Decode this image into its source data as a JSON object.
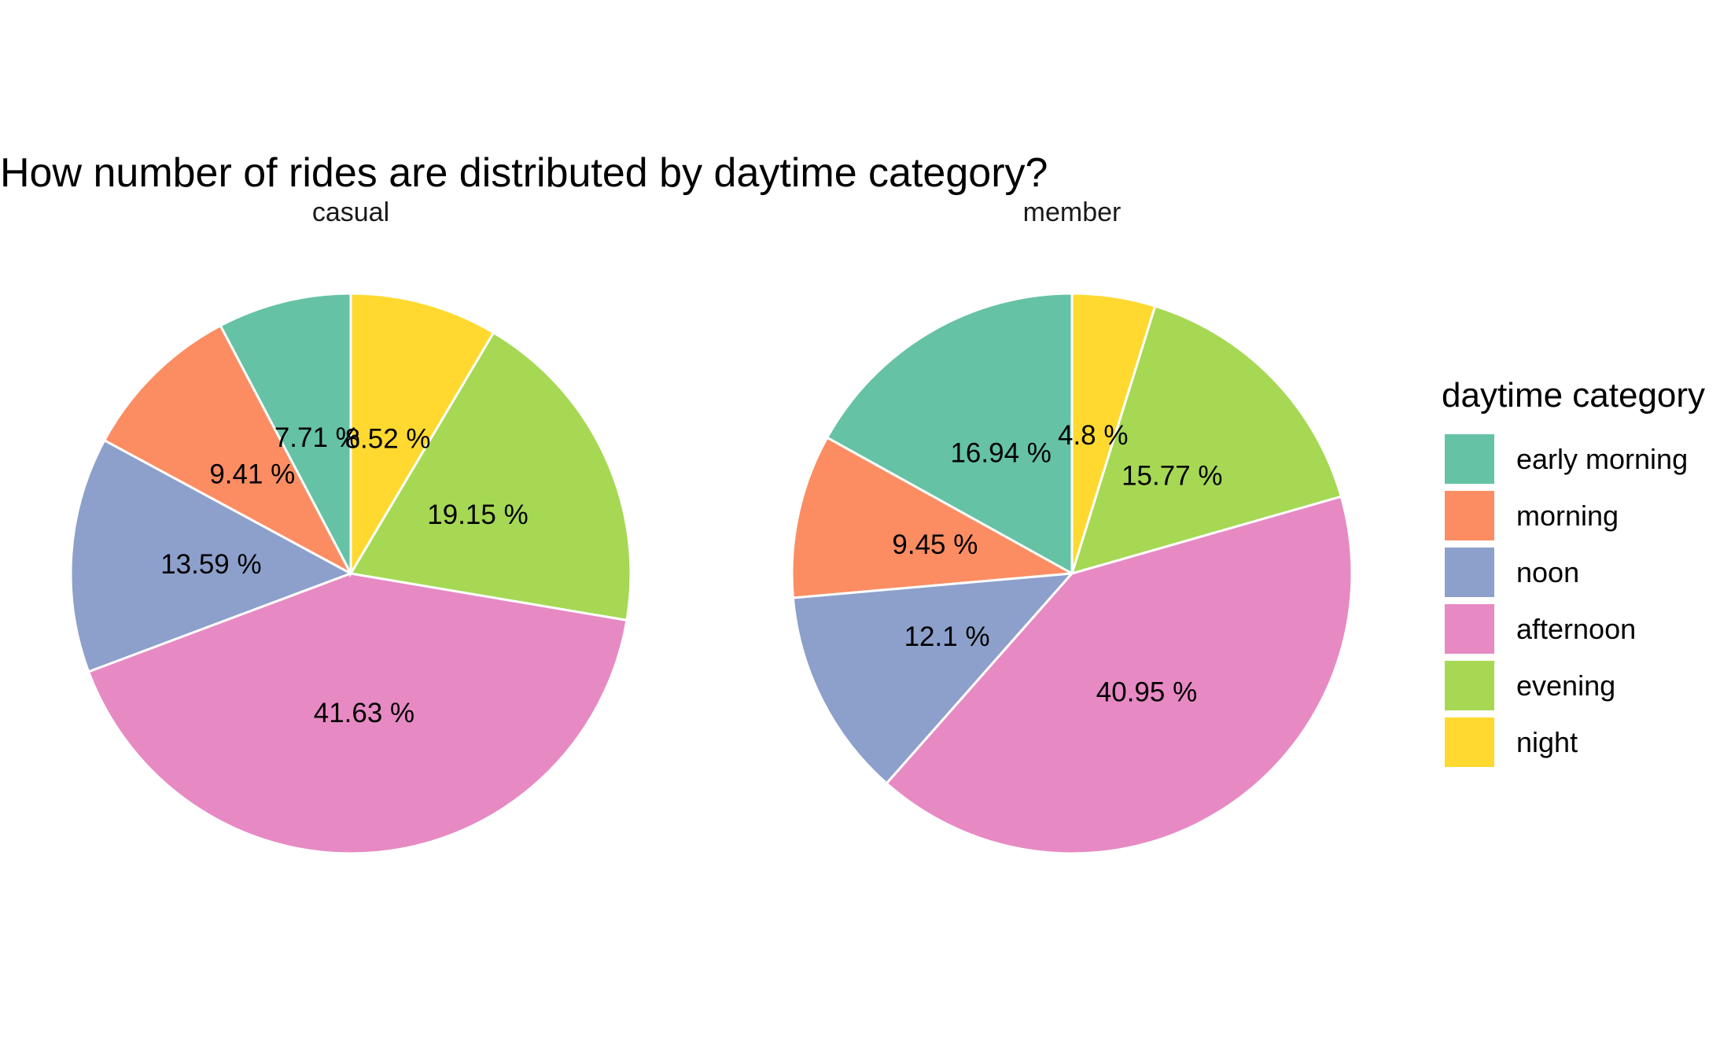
{
  "chart_data": {
    "type": "pie",
    "title": "How number of rides are distributed by daytime category?",
    "legend": {
      "title": "daytime category",
      "placement": "right",
      "entries": [
        {
          "label": "early morning",
          "color": "#66C2A5"
        },
        {
          "label": "morning",
          "color": "#FC8D62"
        },
        {
          "label": "noon",
          "color": "#8DA0CB"
        },
        {
          "label": "afternoon",
          "color": "#E78AC3"
        },
        {
          "label": "evening",
          "color": "#A6D854"
        },
        {
          "label": "night",
          "color": "#FFD92F"
        }
      ]
    },
    "categories": [
      "early morning",
      "morning",
      "noon",
      "afternoon",
      "evening",
      "night"
    ],
    "panels": [
      {
        "name": "casual",
        "values": [
          7.71,
          9.41,
          13.59,
          41.63,
          19.15,
          8.52
        ],
        "labels": [
          "7.71 %",
          "9.41 %",
          "13.59 %",
          "41.63 %",
          "19.15 %",
          "8.52 %"
        ]
      },
      {
        "name": "member",
        "values": [
          16.94,
          9.45,
          12.1,
          40.95,
          15.77,
          4.8
        ],
        "labels": [
          "16.94 %",
          "9.45 %",
          "12.1 %",
          "40.95 %",
          "15.77 %",
          "4.8 %"
        ]
      }
    ]
  }
}
